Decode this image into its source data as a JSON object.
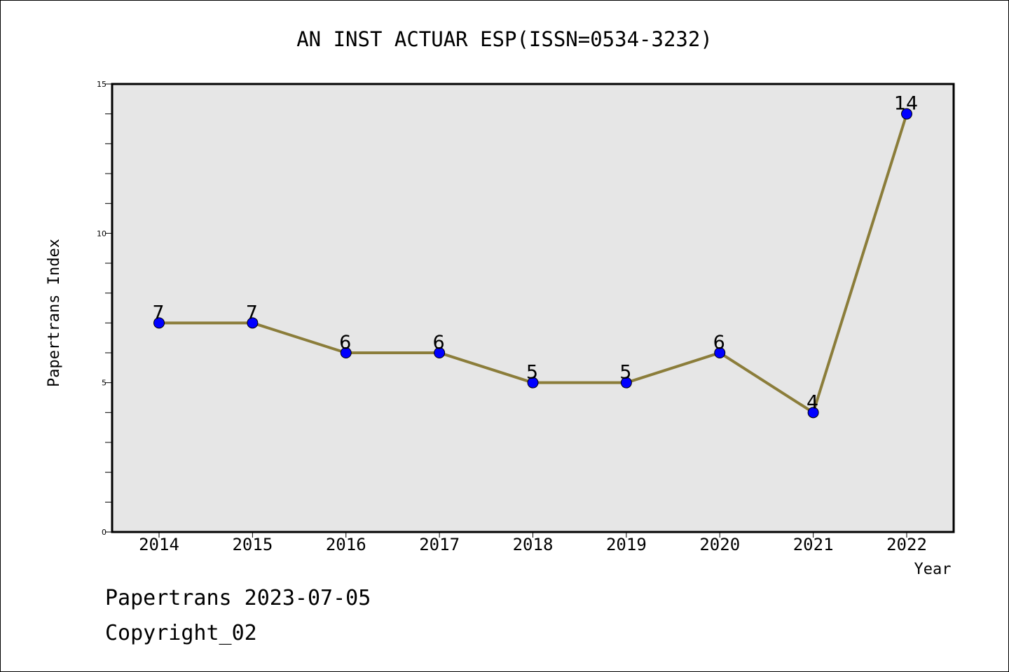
{
  "chart_data": {
    "type": "line",
    "title": "AN INST ACTUAR ESP(ISSN=0534-3232)",
    "xlabel": "Year",
    "ylabel": "Papertrans Index",
    "categories": [
      "2014",
      "2015",
      "2016",
      "2017",
      "2018",
      "2019",
      "2020",
      "2021",
      "2022"
    ],
    "series": [
      {
        "values": [
          7,
          7,
          6,
          6,
          5,
          5,
          6,
          4,
          14
        ]
      }
    ],
    "data_labels": [
      "7",
      "7",
      "6",
      "6",
      "5",
      "5",
      "6",
      "4",
      "14"
    ],
    "ylim": [
      0,
      15
    ],
    "yticks_labeled": [
      {
        "value": 0,
        "label": "0"
      },
      {
        "value": 5,
        "label": "5"
      },
      {
        "value": 10,
        "label": "10"
      },
      {
        "value": 15,
        "label": "15"
      }
    ],
    "yticks_minor": [
      1,
      2,
      3,
      4,
      6,
      7,
      8,
      9,
      11,
      12,
      13,
      14
    ],
    "grid": false,
    "colors": {
      "line": "#8B7D3A",
      "marker": "#0000FF",
      "plot_background": "#E6E6E6"
    }
  },
  "footer": {
    "date_line": "Papertrans 2023-07-05",
    "copyright": "Copyright_02"
  }
}
